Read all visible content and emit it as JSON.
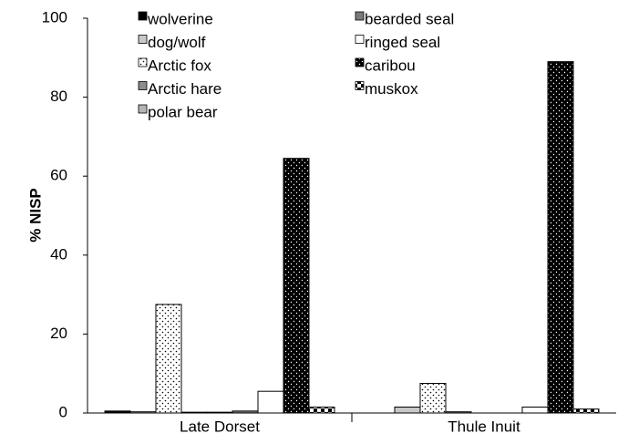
{
  "chart_data": {
    "type": "bar",
    "y_label": "% NISP",
    "categories": [
      "Late Dorset",
      "Thule Inuit"
    ],
    "series": [
      {
        "name": "wolverine",
        "color": "#000000",
        "values": [
          0.5,
          0
        ]
      },
      {
        "name": "dog/wolf",
        "color": "#c8c8c8",
        "values": [
          0.3,
          1.5
        ]
      },
      {
        "name": "Arctic fox",
        "color": "#ffffff",
        "pattern": "dots",
        "values": [
          27.5,
          7.5
        ]
      },
      {
        "name": "Arctic hare",
        "color": "#8c8c8c",
        "values": [
          0.2,
          0.3
        ]
      },
      {
        "name": "polar bear",
        "color": "#b4b4b4",
        "values": [
          0.2,
          0
        ]
      },
      {
        "name": "bearded seal",
        "color": "#7a7a7a",
        "values": [
          0.5,
          0
        ]
      },
      {
        "name": "ringed seal",
        "color": "#ffffff",
        "values": [
          5.5,
          1.5
        ]
      },
      {
        "name": "caribou",
        "color": "#000000",
        "pattern": "dots-inverse",
        "values": [
          64.5,
          89
        ]
      },
      {
        "name": "muskox",
        "color": "#ffffff",
        "pattern": "checker",
        "values": [
          1.5,
          1
        ]
      }
    ],
    "ylim": [
      0,
      100
    ],
    "yticks": [
      0,
      20,
      40,
      60,
      80,
      100
    ],
    "grid": false,
    "legend": "top"
  }
}
